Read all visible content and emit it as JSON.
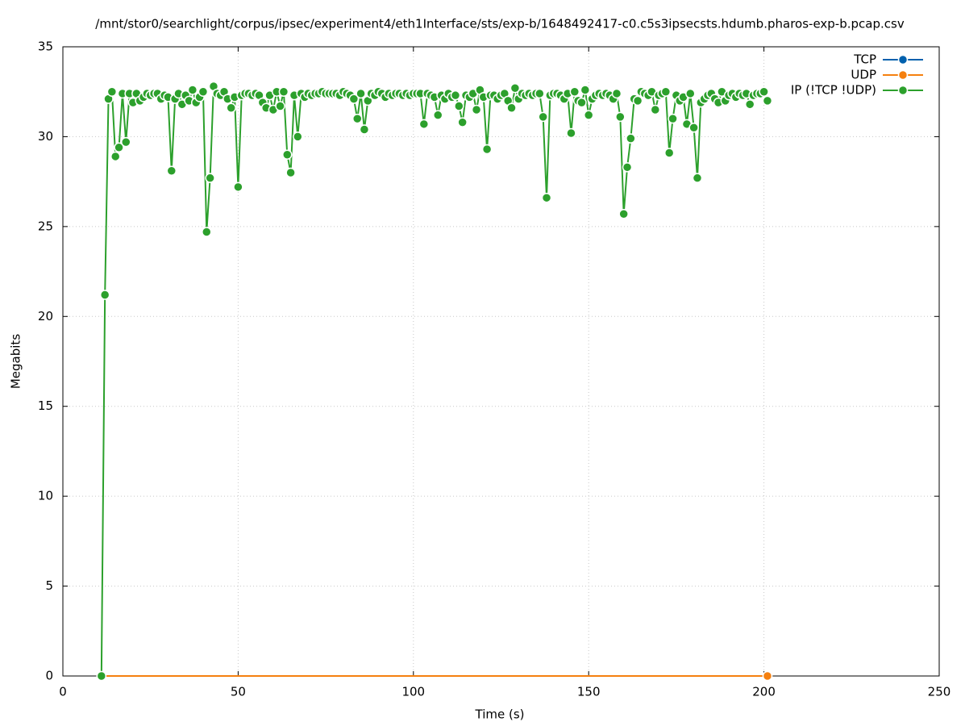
{
  "chart_data": {
    "type": "line",
    "title": "/mnt/stor0/searchlight/corpus/ipsec/experiment4/eth1Interface/sts/exp-b/1648492417-c0.c5s3ipsecsts.hdumb.pharos-exp-b.pcap.csv",
    "x_label": "Time (s)",
    "y_label": "Megabits",
    "xlim": [
      0,
      250
    ],
    "xticks": [
      0,
      50,
      100,
      150,
      200,
      250
    ],
    "ylim": [
      0,
      35
    ],
    "yticks": [
      0,
      5,
      10,
      15,
      20,
      25,
      30,
      35
    ],
    "grid": true,
    "legend": "top-right",
    "series": [
      {
        "name": "TCP",
        "color": "#0060ad",
        "x": [
          11,
          201
        ],
        "values": [
          0,
          0
        ]
      },
      {
        "name": "UDP",
        "color": "#f5800f",
        "x": [
          11,
          201
        ],
        "values": [
          0,
          0
        ]
      },
      {
        "name": "IP (!TCP  !UDP)",
        "color": "#2ca02c",
        "x": [
          11,
          12,
          13,
          14,
          15,
          16,
          17,
          18,
          19,
          20,
          21,
          22,
          23,
          24,
          25,
          26,
          27,
          28,
          29,
          30,
          31,
          32,
          33,
          34,
          35,
          36,
          37,
          38,
          39,
          40,
          41,
          42,
          43,
          44,
          45,
          46,
          47,
          48,
          49,
          50,
          51,
          52,
          53,
          54,
          55,
          56,
          57,
          58,
          59,
          60,
          61,
          62,
          63,
          64,
          65,
          66,
          67,
          68,
          69,
          70,
          71,
          72,
          73,
          74,
          75,
          76,
          77,
          78,
          79,
          80,
          81,
          82,
          83,
          84,
          85,
          86,
          87,
          88,
          89,
          90,
          91,
          92,
          93,
          94,
          95,
          96,
          97,
          98,
          99,
          100,
          101,
          102,
          103,
          104,
          105,
          106,
          107,
          108,
          109,
          110,
          111,
          112,
          113,
          114,
          115,
          116,
          117,
          118,
          119,
          120,
          121,
          122,
          123,
          124,
          125,
          126,
          127,
          128,
          129,
          130,
          131,
          132,
          133,
          134,
          135,
          136,
          137,
          138,
          139,
          140,
          141,
          142,
          143,
          144,
          145,
          146,
          147,
          148,
          149,
          150,
          151,
          152,
          153,
          154,
          155,
          156,
          157,
          158,
          159,
          160,
          161,
          162,
          163,
          164,
          165,
          166,
          167,
          168,
          169,
          170,
          171,
          172,
          173,
          174,
          175,
          176,
          177,
          178,
          179,
          180,
          181,
          182,
          183,
          184,
          185,
          186,
          187,
          188,
          189,
          190,
          191,
          192,
          193,
          194,
          195,
          196,
          197,
          198,
          199,
          200,
          201
        ],
        "values": [
          0,
          21.2,
          32.1,
          32.5,
          28.9,
          29.4,
          32.4,
          29.7,
          32.4,
          31.9,
          32.4,
          32.0,
          32.2,
          32.4,
          32.3,
          32.4,
          32.4,
          32.1,
          32.3,
          32.2,
          28.1,
          32.1,
          32.4,
          31.8,
          32.3,
          32.0,
          32.6,
          31.9,
          32.2,
          32.5,
          24.7,
          27.7,
          32.8,
          32.4,
          32.3,
          32.5,
          32.1,
          31.6,
          32.2,
          27.2,
          32.3,
          32.4,
          32.4,
          32.3,
          32.4,
          32.3,
          31.9,
          31.6,
          32.3,
          31.5,
          32.5,
          31.7,
          32.5,
          29.0,
          28.0,
          32.3,
          30.0,
          32.4,
          32.2,
          32.4,
          32.3,
          32.4,
          32.4,
          32.5,
          32.4,
          32.4,
          32.4,
          32.4,
          32.3,
          32.5,
          32.4,
          32.3,
          32.1,
          31.0,
          32.4,
          30.4,
          32.0,
          32.4,
          32.3,
          32.5,
          32.4,
          32.2,
          32.4,
          32.3,
          32.4,
          32.4,
          32.3,
          32.4,
          32.3,
          32.4,
          32.4,
          32.4,
          30.7,
          32.4,
          32.3,
          32.2,
          31.2,
          32.3,
          32.1,
          32.4,
          32.2,
          32.3,
          31.7,
          30.8,
          32.3,
          32.2,
          32.4,
          31.5,
          32.6,
          32.2,
          29.3,
          32.3,
          32.3,
          32.1,
          32.3,
          32.4,
          32.0,
          31.6,
          32.7,
          32.1,
          32.4,
          32.3,
          32.4,
          32.3,
          32.4,
          32.4,
          31.1,
          26.6,
          32.3,
          32.4,
          32.4,
          32.3,
          32.1,
          32.4,
          30.2,
          32.5,
          32.0,
          31.9,
          32.6,
          31.2,
          32.1,
          32.3,
          32.4,
          32.3,
          32.4,
          32.3,
          32.1,
          32.4,
          31.1,
          25.7,
          28.3,
          29.9,
          32.1,
          32.0,
          32.5,
          32.4,
          32.3,
          32.5,
          31.5,
          32.3,
          32.4,
          32.5,
          29.1,
          31.0,
          32.3,
          32.0,
          32.2,
          30.7,
          32.4,
          30.5,
          27.7,
          31.9,
          32.1,
          32.3,
          32.4,
          32.1,
          31.9,
          32.5,
          32.0,
          32.3,
          32.4,
          32.2,
          32.4,
          32.3,
          32.4,
          31.8,
          32.3,
          32.4,
          32.4,
          32.5,
          32.0
        ]
      }
    ]
  }
}
